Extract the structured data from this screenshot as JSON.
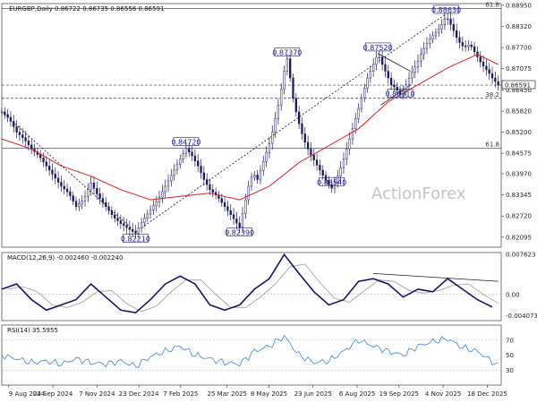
{
  "chart_data": {
    "type": "candlestick",
    "symbol_header": "EURGBP,Daily",
    "ohlc_readout": "0.86722 0.86735 0.86556 0.86591",
    "watermark": "ActionForex",
    "current_price_label": "0.86591",
    "price_axis": {
      "range": [
        0.818,
        0.89
      ],
      "ticks": [
        "0.88950",
        "0.88320",
        "0.87700",
        "0.87075",
        "0.86450",
        "0.85820",
        "0.85200",
        "0.84575",
        "0.83970",
        "0.83345",
        "0.82720",
        "0.82095"
      ]
    },
    "date_axis": {
      "ticks": [
        "9 Aug 2024",
        "24 Sep 2024",
        "7 Nov 2024",
        "23 Dec 2024",
        "7 Feb 2025",
        "25 Mar 2025",
        "8 May 2025",
        "23 Jun 2025",
        "6 Aug 2025",
        "19 Sep 2025",
        "4 Nov 2025",
        "18 Dec 2025"
      ]
    },
    "price_series": [
      [
        0,
        0.858
      ],
      [
        5,
        0.856
      ],
      [
        10,
        0.852
      ],
      [
        15,
        0.85
      ],
      [
        20,
        0.847
      ],
      [
        25,
        0.845
      ],
      [
        30,
        0.842
      ],
      [
        35,
        0.839
      ],
      [
        40,
        0.836
      ],
      [
        45,
        0.834
      ],
      [
        50,
        0.83
      ],
      [
        55,
        0.832
      ],
      [
        60,
        0.837
      ],
      [
        65,
        0.833
      ],
      [
        70,
        0.83
      ],
      [
        75,
        0.827
      ],
      [
        80,
        0.825
      ],
      [
        85,
        0.8235
      ],
      [
        90,
        0.8221
      ],
      [
        95,
        0.826
      ],
      [
        100,
        0.829
      ],
      [
        105,
        0.832
      ],
      [
        110,
        0.836
      ],
      [
        115,
        0.84
      ],
      [
        120,
        0.844
      ],
      [
        124,
        0.8472
      ],
      [
        128,
        0.845
      ],
      [
        132,
        0.842
      ],
      [
        136,
        0.838
      ],
      [
        140,
        0.835
      ],
      [
        145,
        0.833
      ],
      [
        150,
        0.83
      ],
      [
        155,
        0.827
      ],
      [
        160,
        0.8239
      ],
      [
        163,
        0.83
      ],
      [
        166,
        0.836
      ],
      [
        169,
        0.84
      ],
      [
        172,
        0.838
      ],
      [
        175,
        0.842
      ],
      [
        178,
        0.846
      ],
      [
        181,
        0.85
      ],
      [
        184,
        0.856
      ],
      [
        187,
        0.862
      ],
      [
        190,
        0.87
      ],
      [
        192,
        0.8737
      ],
      [
        194,
        0.868
      ],
      [
        196,
        0.862
      ],
      [
        199,
        0.856
      ],
      [
        203,
        0.85
      ],
      [
        207,
        0.846
      ],
      [
        211,
        0.843
      ],
      [
        215,
        0.84
      ],
      [
        219,
        0.837
      ],
      [
        222,
        0.8354
      ],
      [
        226,
        0.839
      ],
      [
        230,
        0.844
      ],
      [
        234,
        0.85
      ],
      [
        238,
        0.856
      ],
      [
        242,
        0.862
      ],
      [
        246,
        0.868
      ],
      [
        250,
        0.872
      ],
      [
        253,
        0.8752
      ],
      [
        256,
        0.872
      ],
      [
        259,
        0.869
      ],
      [
        262,
        0.866
      ],
      [
        265,
        0.865
      ],
      [
        268,
        0.8631
      ],
      [
        271,
        0.865
      ],
      [
        275,
        0.869
      ],
      [
        279,
        0.872
      ],
      [
        283,
        0.876
      ],
      [
        287,
        0.879
      ],
      [
        291,
        0.881
      ],
      [
        295,
        0.883
      ],
      [
        299,
        0.8863
      ],
      [
        303,
        0.883
      ],
      [
        307,
        0.879
      ],
      [
        311,
        0.877
      ],
      [
        315,
        0.878
      ],
      [
        319,
        0.875
      ],
      [
        323,
        0.872
      ],
      [
        327,
        0.87
      ],
      [
        330,
        0.868
      ],
      [
        334,
        0.8659
      ]
    ],
    "sma_series": [
      [
        0,
        0.85
      ],
      [
        20,
        0.847
      ],
      [
        40,
        0.842
      ],
      [
        60,
        0.839
      ],
      [
        80,
        0.835
      ],
      [
        100,
        0.832
      ],
      [
        120,
        0.833
      ],
      [
        140,
        0.834
      ],
      [
        160,
        0.832
      ],
      [
        180,
        0.836
      ],
      [
        200,
        0.843
      ],
      [
        220,
        0.848
      ],
      [
        240,
        0.853
      ],
      [
        260,
        0.861
      ],
      [
        280,
        0.866
      ],
      [
        300,
        0.871
      ],
      [
        320,
        0.875
      ],
      [
        334,
        0.872
      ]
    ],
    "annotations": [
      {
        "label": "0.88630",
        "i": 299,
        "price": 0.8863
      },
      {
        "label": "0.87520",
        "i": 253,
        "price": 0.8752
      },
      {
        "label": "0.87370",
        "i": 192,
        "price": 0.8737
      },
      {
        "label": "0.86310",
        "i": 268,
        "price": 0.8631
      },
      {
        "label": "0.84720",
        "i": 124,
        "price": 0.8472
      },
      {
        "label": "0.83540",
        "i": 222,
        "price": 0.8354
      },
      {
        "label": "0.82390",
        "i": 160,
        "price": 0.8239
      },
      {
        "label": "0.82210",
        "i": 90,
        "price": 0.8221
      }
    ],
    "fib_labels": [
      {
        "label": "61.8",
        "price": 0.8885
      },
      {
        "label": "38.2",
        "price": 0.862
      },
      {
        "label": "61.8",
        "price": 0.8472
      }
    ],
    "horizontal_lines": [
      {
        "price": 0.8885,
        "style": "solid"
      },
      {
        "price": 0.8659,
        "style": "dash"
      },
      {
        "price": 0.862,
        "style": "dash"
      },
      {
        "price": 0.8472,
        "style": "solid"
      }
    ],
    "macd": {
      "header": "MACD(12,26,9) -0.002460 -0.002240",
      "range": [
        -0.005,
        0.008
      ],
      "ticks": [
        "0.007623",
        "0.00",
        "-0.004073"
      ],
      "series": [
        [
          0,
          0.001
        ],
        [
          10,
          0.002
        ],
        [
          20,
          -0.001
        ],
        [
          30,
          -0.003
        ],
        [
          40,
          -0.002
        ],
        [
          50,
          -0.001
        ],
        [
          60,
          0.002
        ],
        [
          70,
          -0.0005
        ],
        [
          80,
          -0.003
        ],
        [
          90,
          -0.0035
        ],
        [
          100,
          -0.001
        ],
        [
          110,
          0.002
        ],
        [
          120,
          0.0035
        ],
        [
          130,
          0.002
        ],
        [
          140,
          -0.002
        ],
        [
          150,
          -0.003
        ],
        [
          160,
          -0.002
        ],
        [
          170,
          0.001
        ],
        [
          180,
          0.003
        ],
        [
          190,
          0.0076
        ],
        [
          200,
          0.004
        ],
        [
          210,
          0.0005
        ],
        [
          220,
          -0.002
        ],
        [
          230,
          -0.001
        ],
        [
          240,
          0.0025
        ],
        [
          250,
          0.003
        ],
        [
          260,
          0.002
        ],
        [
          270,
          -0.0005
        ],
        [
          280,
          0.001
        ],
        [
          290,
          0.0005
        ],
        [
          300,
          0.003
        ],
        [
          310,
          0.001
        ],
        [
          320,
          -0.001
        ],
        [
          330,
          -0.0024
        ]
      ],
      "trendline": [
        [
          250,
          0.004
        ],
        [
          334,
          0.0025
        ]
      ]
    },
    "rsi": {
      "header": "RSI(14) 35.5955",
      "range": [
        10,
        90
      ],
      "ticks": [
        "70",
        "50",
        "30"
      ],
      "series": [
        [
          0,
          50
        ],
        [
          10,
          45
        ],
        [
          20,
          40
        ],
        [
          30,
          42
        ],
        [
          40,
          38
        ],
        [
          50,
          45
        ],
        [
          60,
          40
        ],
        [
          70,
          38
        ],
        [
          80,
          42
        ],
        [
          90,
          35
        ],
        [
          100,
          48
        ],
        [
          110,
          55
        ],
        [
          120,
          62
        ],
        [
          130,
          50
        ],
        [
          140,
          45
        ],
        [
          150,
          40
        ],
        [
          160,
          38
        ],
        [
          170,
          55
        ],
        [
          180,
          62
        ],
        [
          190,
          75
        ],
        [
          200,
          50
        ],
        [
          210,
          40
        ],
        [
          220,
          42
        ],
        [
          230,
          55
        ],
        [
          240,
          70
        ],
        [
          250,
          62
        ],
        [
          260,
          55
        ],
        [
          270,
          50
        ],
        [
          280,
          62
        ],
        [
          290,
          68
        ],
        [
          300,
          72
        ],
        [
          310,
          60
        ],
        [
          320,
          55
        ],
        [
          334,
          36
        ]
      ]
    }
  }
}
